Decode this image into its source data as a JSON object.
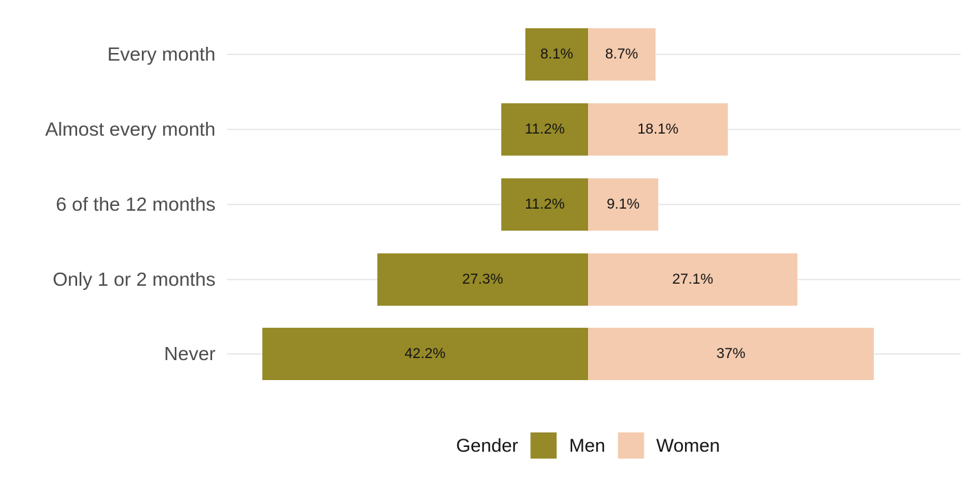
{
  "chart_data": {
    "type": "bar",
    "variant": "diverging-pyramid-horizontal",
    "title": "",
    "categories": [
      "Every month",
      "Almost every month",
      "6 of the 12 months",
      "Only 1 or 2 months",
      "Never"
    ],
    "series": [
      {
        "name": "Men",
        "side": "left",
        "color": "#968a28",
        "values": [
          8.1,
          11.2,
          11.2,
          27.3,
          42.2
        ],
        "labels": [
          "8.1%",
          "11.2%",
          "11.2%",
          "27.3%",
          "42.2%"
        ]
      },
      {
        "name": "Women",
        "side": "right",
        "color": "#f4cbaf",
        "values": [
          8.7,
          18.1,
          9.1,
          27.1,
          37
        ],
        "labels": [
          "8.7%",
          "18.1%",
          "9.1%",
          "27.1%",
          "37%"
        ]
      }
    ],
    "legend": {
      "title": "Gender",
      "position": "bottom-center",
      "entries": [
        "Men",
        "Women"
      ]
    },
    "axes": {
      "x_axis_visible": false,
      "y_tick_labels": [
        "Every month",
        "Almost every month",
        "6 of the 12 months",
        "Only 1 or 2 months",
        "Never"
      ],
      "grid": "one horizontal gridline per category"
    }
  },
  "colors": {
    "men": "#968a28",
    "women": "#f4cbaf",
    "gridline": "#e8e8e8",
    "category_label": "#4d4d4d",
    "value_label": "#141414",
    "background": "#ffffff"
  }
}
